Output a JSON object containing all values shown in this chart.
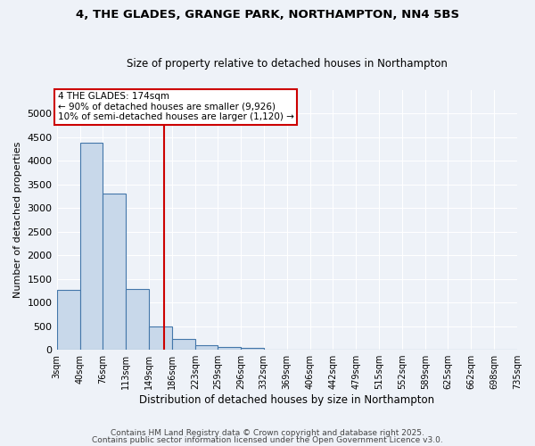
{
  "title1": "4, THE GLADES, GRANGE PARK, NORTHAMPTON, NN4 5BS",
  "title2": "Size of property relative to detached houses in Northampton",
  "xlabel": "Distribution of detached houses by size in Northampton",
  "ylabel": "Number of detached properties",
  "bins": [
    3,
    40,
    76,
    113,
    149,
    186,
    223,
    259,
    296,
    332,
    369,
    406,
    442,
    479,
    515,
    552,
    589,
    625,
    662,
    698,
    735
  ],
  "bar_heights": [
    1270,
    4380,
    3310,
    1290,
    500,
    220,
    90,
    60,
    40,
    10,
    5,
    0,
    0,
    0,
    0,
    0,
    0,
    0,
    0,
    0
  ],
  "bar_color": "#c8d8ea",
  "bar_edge_color": "#4477aa",
  "property_size": 174,
  "vline_color": "#cc0000",
  "annotation_line1": "4 THE GLADES: 174sqm",
  "annotation_line2": "← 90% of detached houses are smaller (9,926)",
  "annotation_line3": "10% of semi-detached houses are larger (1,120) →",
  "ylim": [
    0,
    5500
  ],
  "yticks": [
    0,
    500,
    1000,
    1500,
    2000,
    2500,
    3000,
    3500,
    4000,
    4500,
    5000
  ],
  "bg_color": "#eef2f8",
  "grid_color": "#ffffff",
  "footer1": "Contains HM Land Registry data © Crown copyright and database right 2025.",
  "footer2": "Contains public sector information licensed under the Open Government Licence v3.0."
}
